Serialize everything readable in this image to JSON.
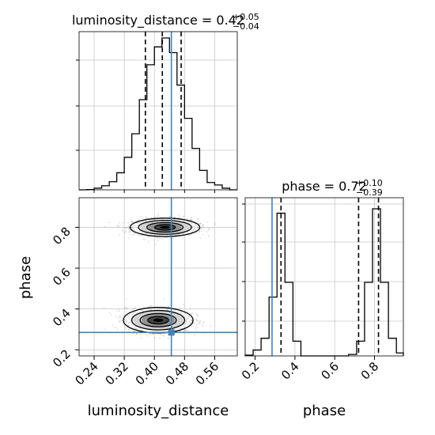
{
  "chart_data": {
    "type": "corner-plot",
    "parameters": [
      "luminosity_distance",
      "phase"
    ],
    "titles": {
      "luminosity_distance": {
        "prefix": "luminosity_distance = 0.42",
        "plus": "+0.05",
        "minus": "−0.04"
      },
      "phase": {
        "prefix": "phase = 0.72",
        "plus": "+0.10",
        "minus": "−0.39"
      }
    },
    "axis_labels": {
      "x": [
        "luminosity_distance",
        "phase"
      ],
      "y_lower": "phase"
    },
    "truth": {
      "luminosity_distance": 0.445,
      "phase": 0.285
    },
    "quantile_lines": {
      "luminosity_distance": [
        0.376,
        0.421,
        0.471
      ],
      "phase": [
        0.33,
        0.72,
        0.82
      ]
    },
    "xlim": {
      "luminosity_distance": [
        0.2,
        0.62
      ],
      "phase": [
        0.15,
        0.945
      ]
    },
    "ylim_phase": [
      0.17,
      0.945
    ],
    "ticks": {
      "luminosity_distance": [
        "0.24",
        "0.32",
        "0.40",
        "0.48",
        "0.56"
      ],
      "phase": [
        "0.2",
        "0.4",
        "0.6",
        "0.8"
      ]
    },
    "hist_luminosity_distance": {
      "edges": [
        0.2,
        0.22,
        0.24,
        0.26,
        0.28,
        0.3,
        0.32,
        0.34,
        0.36,
        0.38,
        0.4,
        0.42,
        0.44,
        0.46,
        0.48,
        0.5,
        0.52,
        0.54,
        0.56,
        0.58,
        0.6,
        0.62
      ],
      "counts": [
        0,
        0.002,
        0.01,
        0.025,
        0.05,
        0.105,
        0.2,
        0.345,
        0.555,
        0.77,
        0.88,
        0.935,
        0.845,
        0.645,
        0.44,
        0.255,
        0.12,
        0.045,
        0.03,
        0.01,
        0
      ]
    },
    "hist_phase": {
      "edges": [
        0.15,
        0.19,
        0.23,
        0.27,
        0.31,
        0.35,
        0.39,
        0.43,
        0.47,
        0.51,
        0.55,
        0.59,
        0.63,
        0.67,
        0.71,
        0.75,
        0.79,
        0.83,
        0.87,
        0.91,
        0.945
      ],
      "counts": [
        0.005,
        0.04,
        0.12,
        0.4,
        0.97,
        0.5,
        0.1,
        0,
        0,
        0,
        0,
        0,
        0,
        0.01,
        0.1,
        0.5,
        1.0,
        0.5,
        0.12,
        0.02
      ]
    },
    "modes": [
      {
        "ld": 0.428,
        "phase": 0.8,
        "sd_ld": 0.037,
        "sd_phase": 0.018
      },
      {
        "ld": 0.41,
        "phase": 0.345,
        "sd_ld": 0.037,
        "sd_phase": 0.025
      }
    ],
    "grid": true
  }
}
